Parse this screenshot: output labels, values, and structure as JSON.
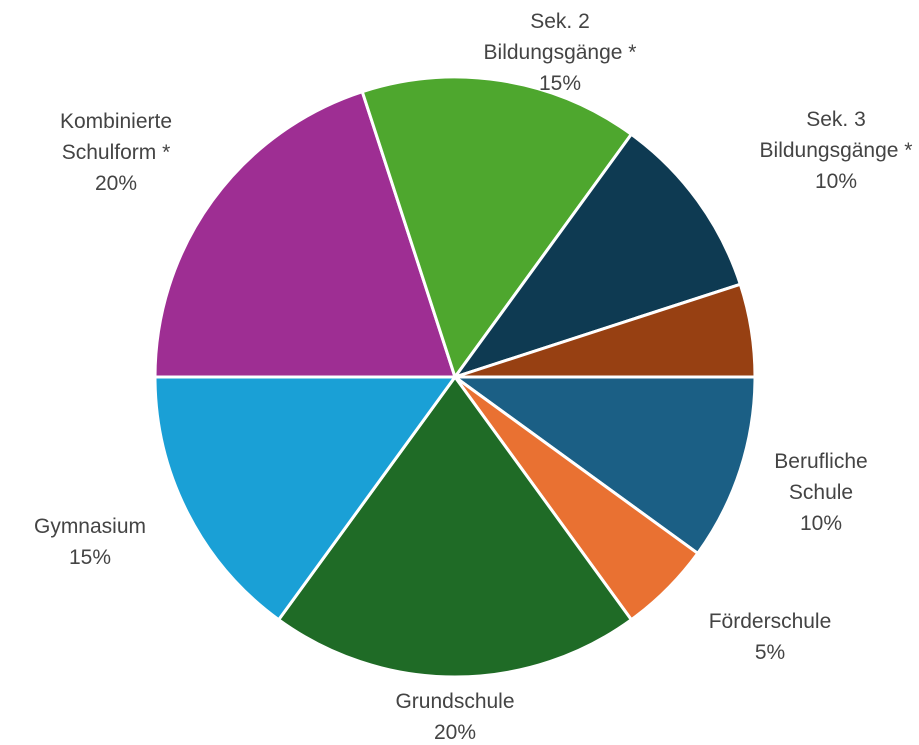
{
  "chart_data": {
    "type": "pie",
    "title": "",
    "start_angle_deg": 90,
    "direction": "clockwise",
    "slices": [
      {
        "label_lines": [
          "Berufliche",
          "Schule"
        ],
        "value": 10,
        "value_label": "10%",
        "color": "#1b5f85"
      },
      {
        "label_lines": [
          "Förderschule"
        ],
        "value": 5,
        "value_label": "5%",
        "color": "#e97132"
      },
      {
        "label_lines": [
          "Grundschule"
        ],
        "value": 20,
        "value_label": "20%",
        "color": "#1f6b26"
      },
      {
        "label_lines": [
          "Gymnasium"
        ],
        "value": 15,
        "value_label": "15%",
        "color": "#1aa0d6"
      },
      {
        "label_lines": [
          "Kombinierte",
          "Schulform *"
        ],
        "value": 20,
        "value_label": "20%",
        "color": "#9e2e93"
      },
      {
        "label_lines": [
          "Sek. 2",
          "Bildungsgänge *"
        ],
        "value": 15,
        "value_label": "15%",
        "color": "#4ea72e"
      },
      {
        "label_lines": [
          "Sek. 3",
          "Bildungsgänge *"
        ],
        "value": 10,
        "value_label": "10%",
        "color": "#0e3a52"
      },
      {
        "label_lines": [],
        "value": 5,
        "value_label": "",
        "color": "#974012"
      }
    ]
  }
}
